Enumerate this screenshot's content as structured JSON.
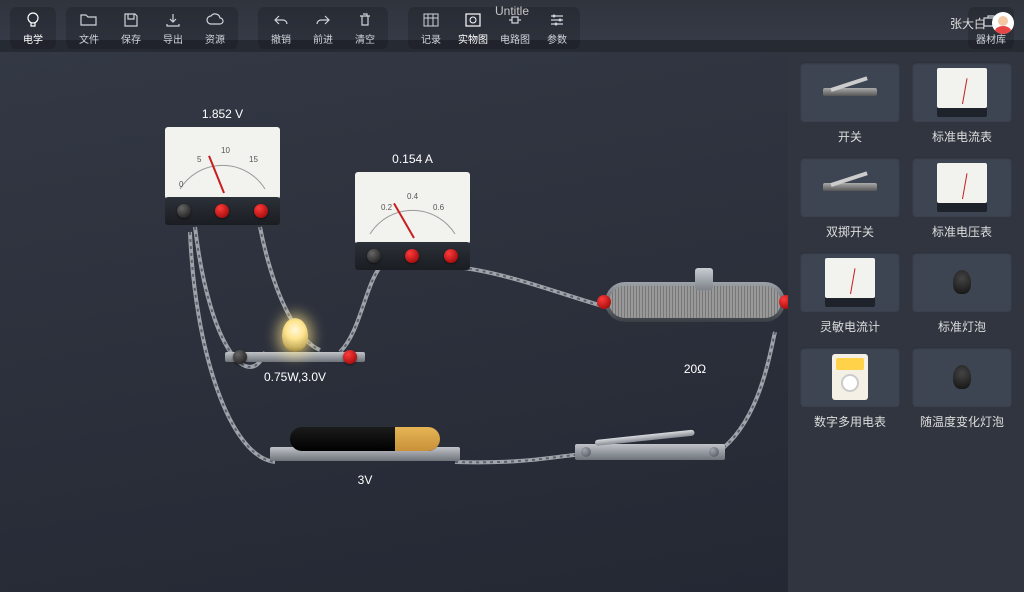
{
  "title": "Untitle",
  "user": "张大白",
  "toolbar": {
    "electric": "电学",
    "file": "文件",
    "save": "保存",
    "export": "导出",
    "resource": "资源",
    "undo": "撤销",
    "redo": "前进",
    "clear": "清空",
    "record": "记录",
    "realView": "实物图",
    "circuitView": "电路图",
    "params": "参数",
    "library": "器材库"
  },
  "components": {
    "voltmeter": {
      "reading": "1.852 V",
      "scale": [
        "0",
        "5",
        "10",
        "15"
      ],
      "unit": "V"
    },
    "ammeter": {
      "reading": "0.154 A",
      "scale": [
        "0.2",
        "0.4",
        "0.6"
      ],
      "unit": "A"
    },
    "lamp": {
      "label": "0.75W,3.0V"
    },
    "rheostat": {
      "label": "20Ω"
    },
    "battery": {
      "label": "3V"
    }
  },
  "panel": [
    {
      "name": "开关",
      "kind": "switch"
    },
    {
      "name": "标准电流表",
      "kind": "ammeter"
    },
    {
      "name": "双掷开关",
      "kind": "switch"
    },
    {
      "name": "标准电压表",
      "kind": "voltmeter"
    },
    {
      "name": "灵敏电流计",
      "kind": "galvanometer"
    },
    {
      "name": "标准灯泡",
      "kind": "bulb"
    },
    {
      "name": "数字多用电表",
      "kind": "multimeter"
    },
    {
      "name": "随温度变化灯泡",
      "kind": "bulb"
    }
  ],
  "colors": {
    "bg": "#2a2f39",
    "text": "#ffffff",
    "knob_red": "#d12f2f"
  }
}
